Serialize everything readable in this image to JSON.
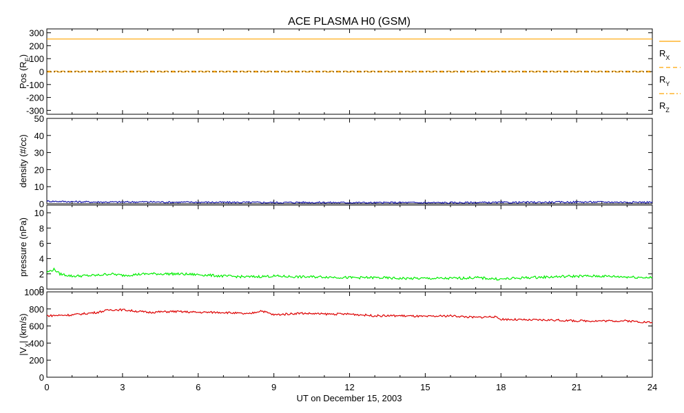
{
  "chart_data": {
    "type": "line",
    "title": "ACE PLASMA H0 (GSM)",
    "xlabel": "UT on December 15, 2003",
    "x_ticks": [
      0,
      3,
      6,
      9,
      12,
      15,
      18,
      21,
      24
    ],
    "x_tick_labels": [
      "0",
      "3",
      "6",
      "9",
      "12",
      "15",
      "18",
      "21",
      "24"
    ],
    "xlim": [
      0,
      24
    ],
    "x_unit": "hours UT",
    "panels": [
      {
        "ylabel_main": "Pos (R",
        "ylabel_sub": "E",
        "ylabel_end": ")",
        "ylim": [
          -330,
          330
        ],
        "yticks": [
          300,
          200,
          100,
          0,
          -100,
          -200,
          -300
        ],
        "ytick_labels": [
          "300",
          "200",
          "100",
          "0",
          "-100",
          "-200",
          "-300"
        ],
        "series": [
          {
            "name": "R",
            "name_sub": "X",
            "color": "#ffa500",
            "style": "solid",
            "x": [
              0,
              24
            ],
            "values": [
              252,
              252
            ]
          },
          {
            "name": "R",
            "name_sub": "Y",
            "color": "#ffa500",
            "style": "dashed",
            "x": [
              0,
              24
            ],
            "values": [
              3,
              3
            ]
          },
          {
            "name": "R",
            "name_sub": "Z",
            "color": "#ffa500",
            "style": "dashdot",
            "x": [
              0,
              24
            ],
            "values": [
              -3,
              -3
            ]
          }
        ]
      },
      {
        "ylabel_main": "density (#/cc)",
        "ylim": [
          0,
          50
        ],
        "yticks": [
          50,
          40,
          30,
          20,
          10,
          0
        ],
        "ytick_labels": [
          "50",
          "40",
          "30",
          "20",
          "10",
          "0"
        ],
        "series": [
          {
            "color": "#1a1aaa",
            "x": [
              0,
              1,
              2,
              3,
              4,
              5,
              6,
              7,
              8,
              9,
              10,
              11,
              12,
              13,
              14,
              15,
              16,
              17,
              18,
              19,
              20,
              21,
              22,
              23,
              24
            ],
            "values": [
              1.5,
              1.2,
              1.0,
              1.0,
              1.1,
              0.9,
              0.9,
              0.8,
              0.8,
              0.7,
              0.8,
              0.7,
              0.7,
              0.6,
              0.7,
              0.6,
              0.6,
              0.7,
              0.7,
              0.8,
              0.9,
              1.0,
              1.0,
              0.9,
              0.9
            ]
          }
        ]
      },
      {
        "ylabel_main": "pressure (nPa)",
        "ylim": [
          0,
          11
        ],
        "yticks": [
          10,
          8,
          6,
          4,
          2,
          0
        ],
        "ytick_labels": [
          "10",
          "8",
          "6",
          "4",
          "2",
          "0"
        ],
        "series": [
          {
            "color": "#00ee00",
            "x": [
              0,
              0.3,
              0.5,
              1,
              2,
              2.5,
              3,
              3.5,
              4,
              5,
              6,
              7,
              8,
              9,
              10,
              11,
              12,
              13,
              14,
              15,
              16,
              17,
              18,
              19,
              20,
              21,
              22,
              23,
              24
            ],
            "values": [
              2.2,
              2.6,
              2.0,
              1.7,
              1.8,
              2.0,
              1.8,
              1.9,
              2.0,
              2.0,
              1.9,
              1.7,
              1.6,
              1.7,
              1.6,
              1.6,
              1.5,
              1.5,
              1.4,
              1.4,
              1.4,
              1.5,
              1.3,
              1.5,
              1.6,
              1.7,
              1.7,
              1.6,
              1.5
            ]
          }
        ]
      },
      {
        "ylabel_main": "|V",
        "ylabel_sub": "X",
        "ylabel_end": "| (km/s)",
        "ylim": [
          0,
          1000
        ],
        "yticks": [
          1000,
          800,
          600,
          400,
          200,
          0
        ],
        "ytick_labels": [
          "1000",
          "800",
          "600",
          "400",
          "200",
          "0"
        ],
        "series": [
          {
            "color": "#dd0000",
            "x": [
              0,
              1,
              2,
              2.5,
              3,
              4,
              5,
              6,
              7,
              8,
              8.5,
              9,
              10,
              11,
              12,
              13,
              14,
              15,
              16,
              17,
              17.7,
              18,
              19,
              20,
              21,
              22,
              23,
              24
            ],
            "values": [
              720,
              730,
              760,
              790,
              790,
              760,
              770,
              760,
              760,
              740,
              780,
              730,
              750,
              740,
              740,
              720,
              720,
              710,
              720,
              700,
              710,
              680,
              670,
              670,
              660,
              660,
              660,
              640
            ]
          }
        ]
      }
    ],
    "legend_placement": "right of top panel"
  }
}
